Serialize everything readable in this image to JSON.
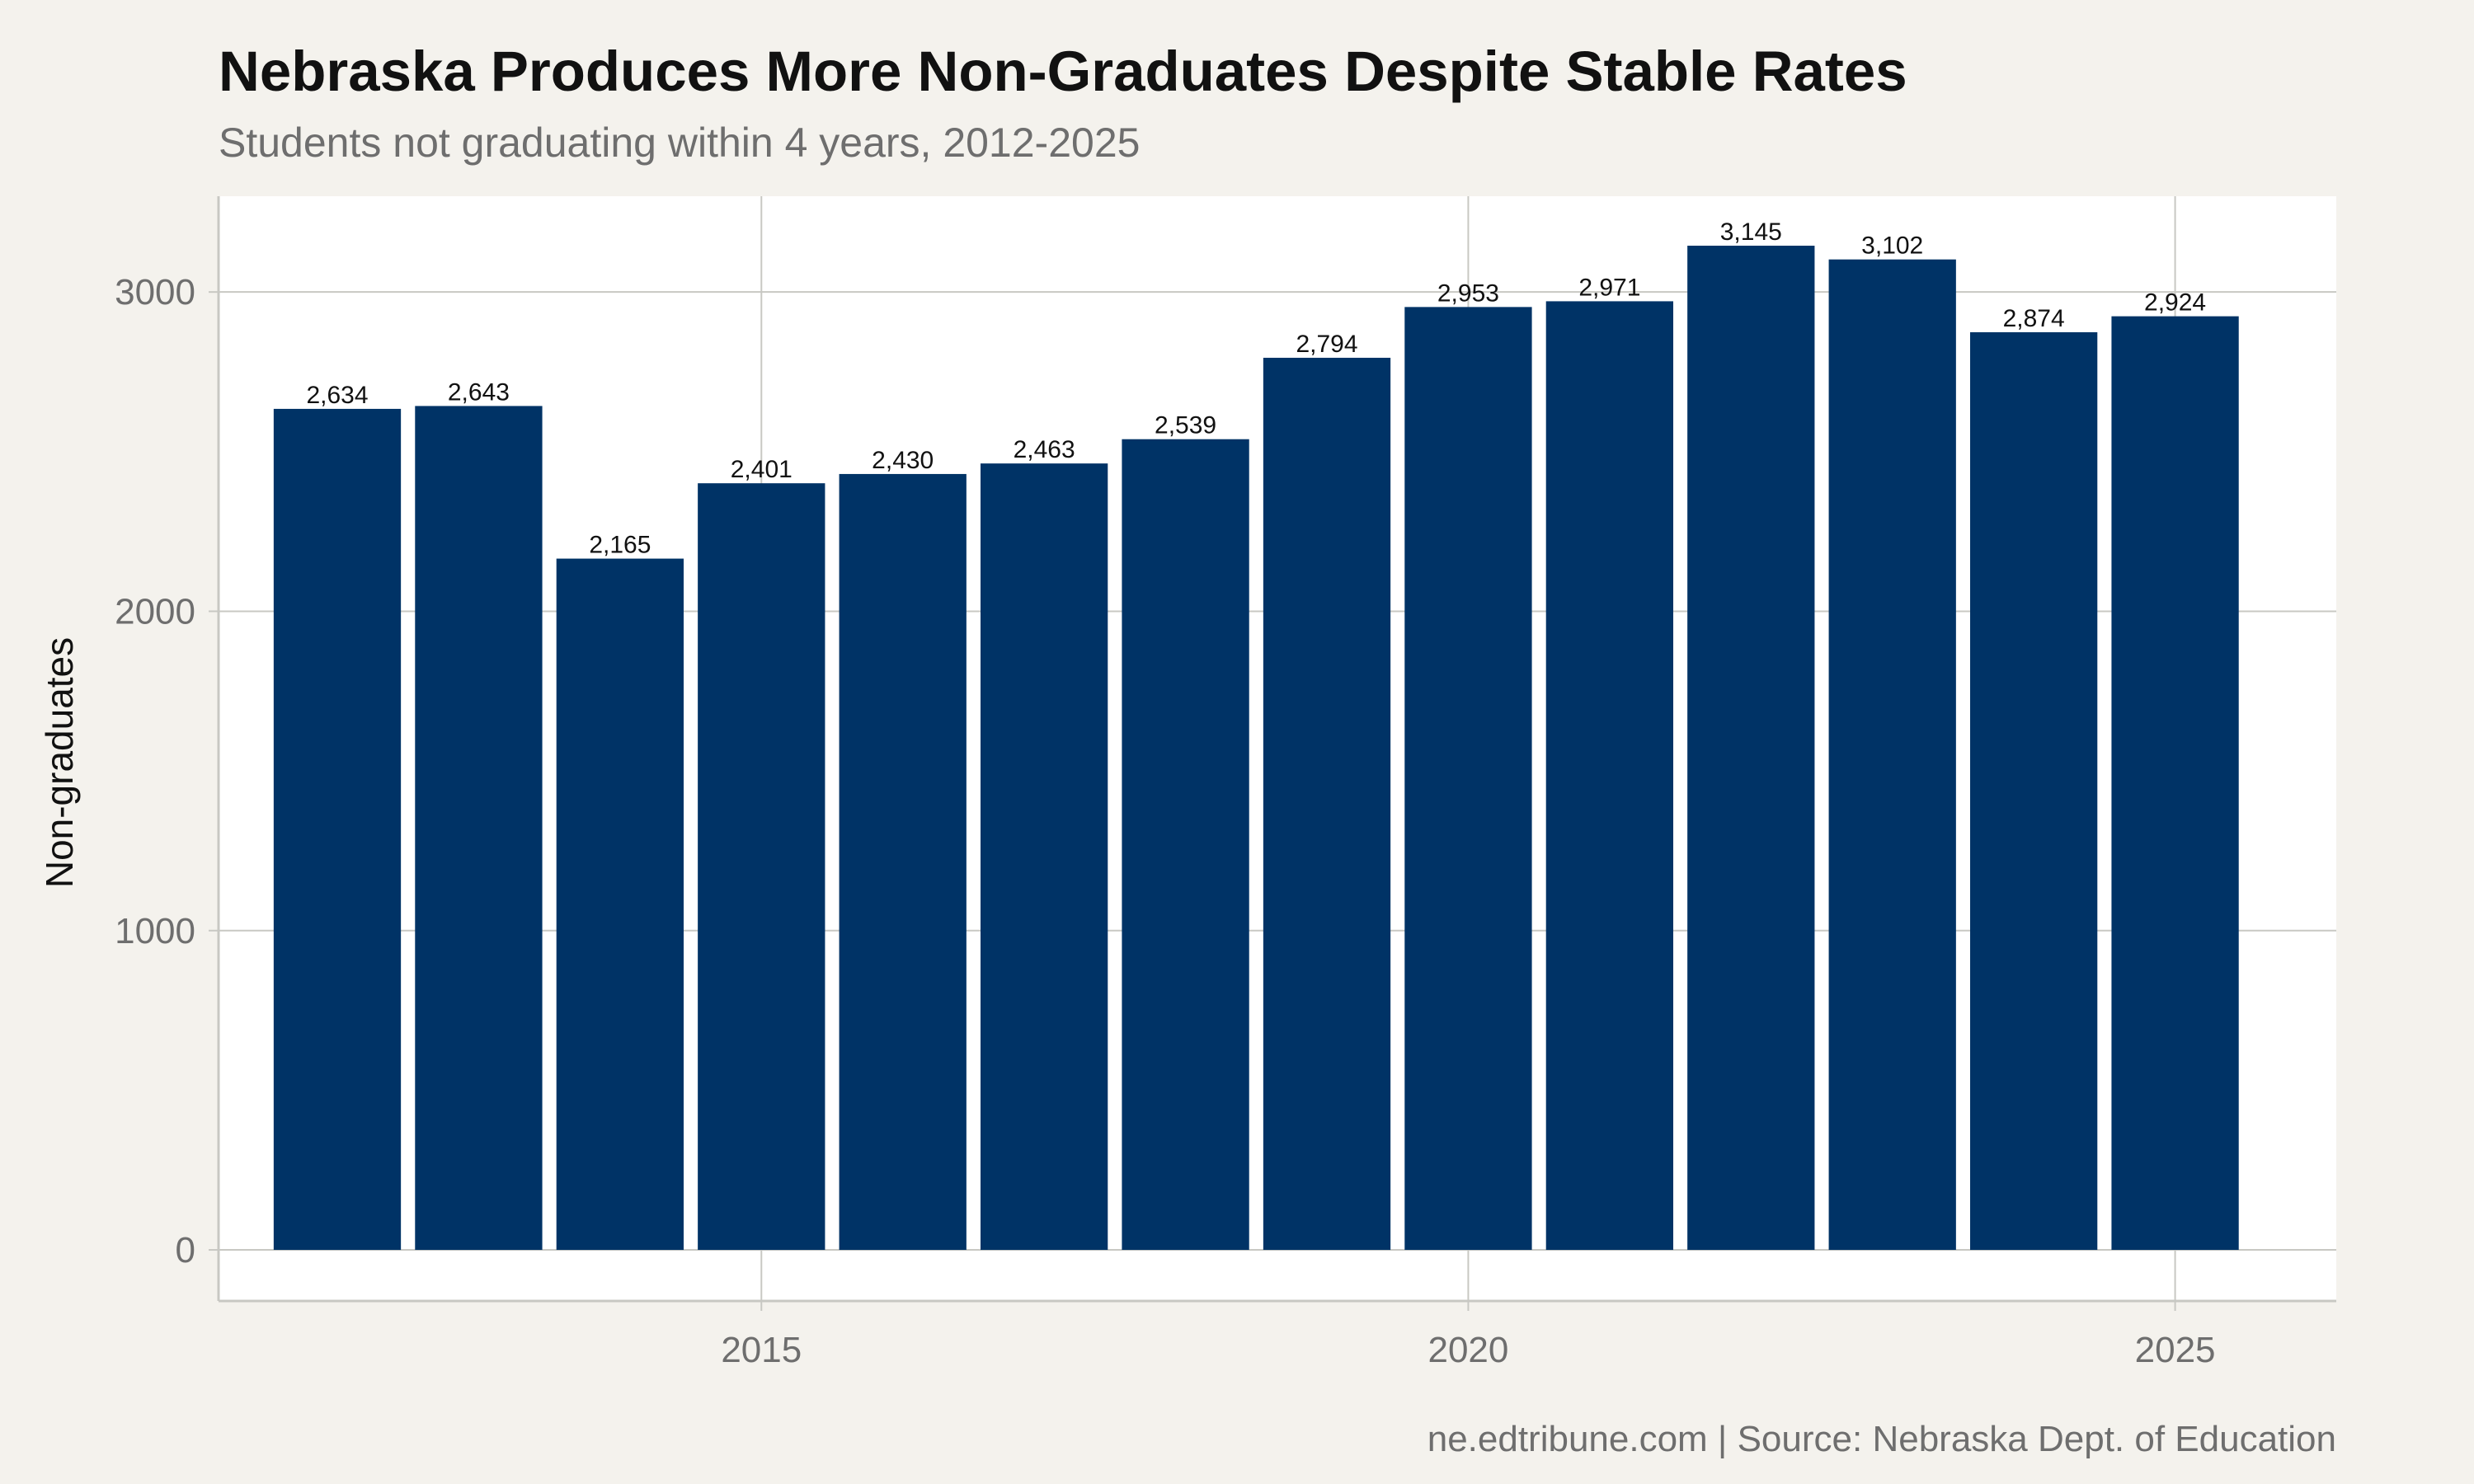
{
  "chart_data": {
    "type": "bar",
    "title": "Nebraska Produces More Non-Graduates Despite Stable Rates",
    "subtitle": "Students not graduating within 4 years, 2012-2025",
    "caption": "ne.edtribune.com | Source: Nebraska Dept. of Education",
    "xlabel": "",
    "ylabel": "Non-graduates",
    "x": [
      2012,
      2013,
      2014,
      2015,
      2016,
      2017,
      2018,
      2019,
      2020,
      2021,
      2022,
      2023,
      2024,
      2025
    ],
    "values": [
      2634,
      2643,
      2165,
      2401,
      2430,
      2463,
      2539,
      2794,
      2953,
      2971,
      3145,
      3102,
      2874,
      2924
    ],
    "data_labels": [
      "2,634",
      "2,643",
      "2,165",
      "2,401",
      "2,430",
      "2,463",
      "2,539",
      "2,794",
      "2,953",
      "2,971",
      "3,145",
      "3,102",
      "2,874",
      "2,924"
    ],
    "xticks": [
      2015,
      2020,
      2025
    ],
    "xtick_labels": [
      "2015",
      "2020",
      "2025"
    ],
    "yticks": [
      0,
      1000,
      2000,
      3000
    ],
    "ytick_labels": [
      "0",
      "1000",
      "2000",
      "3000"
    ],
    "xlim": [
      2011.16,
      2026.14
    ],
    "ylim": [
      -160,
      3300
    ],
    "grid": true,
    "colors": {
      "bar": "#003366",
      "background": "#f4f2ed",
      "panel": "#ffffff",
      "grid": "#c8c8c3"
    }
  }
}
